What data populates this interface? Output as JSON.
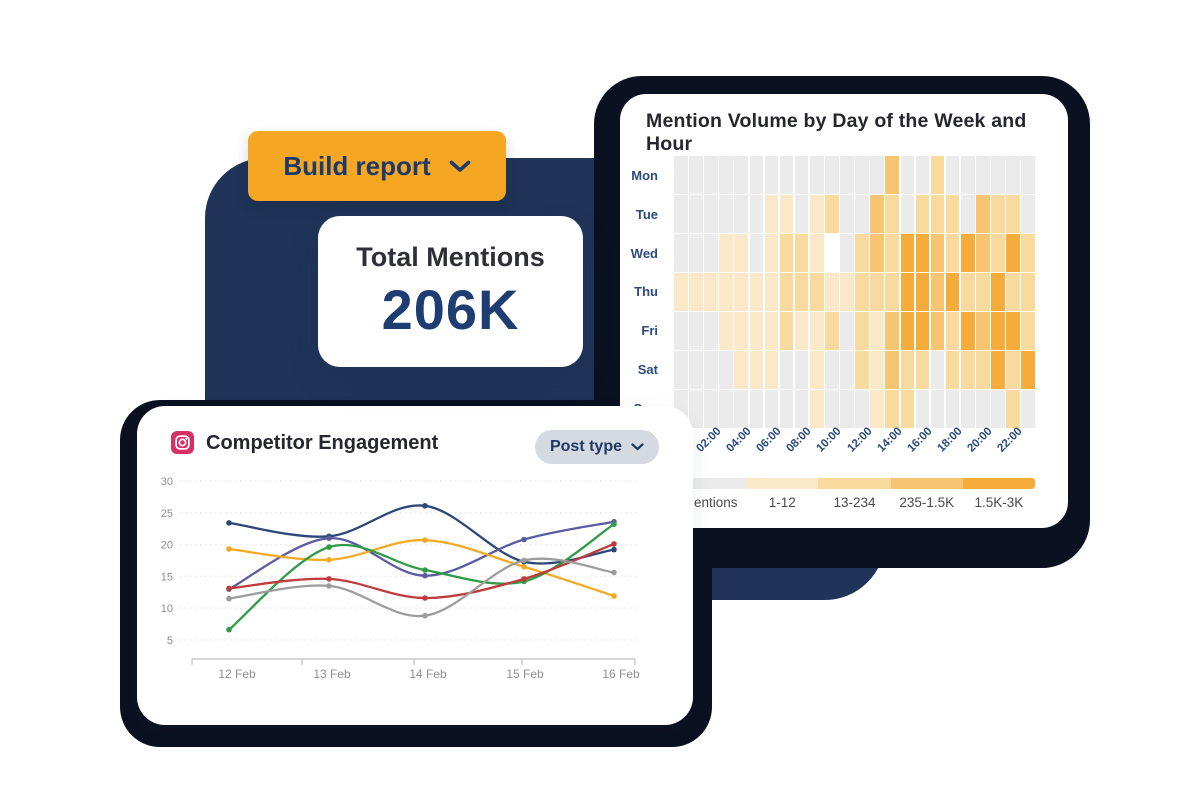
{
  "colors": {
    "panel_navy": "#1F3458",
    "card_frame_dark": "#0B1120",
    "accent_orange": "#F5A623",
    "deep_navy_text": "#1E3D72"
  },
  "build_report_button": {
    "label": "Build report",
    "icon": "chevron-down-icon"
  },
  "total_mentions_card": {
    "title": "Total Mentions",
    "value": "206K"
  },
  "competitor_card": {
    "icon": "instagram-icon",
    "post_type_button": {
      "label": "Post type",
      "icon": "chevron-down-icon"
    }
  },
  "chart_data": [
    {
      "type": "heatmap",
      "title": "Mention Volume by Day of the Week and Hour",
      "rows": [
        "Mon",
        "Tue",
        "Wed",
        "Thu",
        "Fri",
        "Sat",
        "Sun"
      ],
      "hour_labels": [
        "02:00",
        "04:00",
        "06:00",
        "08:00",
        "10:00",
        "12:00",
        "14:00",
        "16:00",
        "18:00",
        "20:00",
        "22:00"
      ],
      "levels": {
        "0": "#EBEBEB",
        "1": "#FAE8C9",
        "2": "#F8D99E",
        "3": "#F7C572",
        "4": "#F6AC3A",
        "W": "#FFFFFF"
      },
      "legend": {
        "labels": [
          "Mentions",
          "1-12",
          "13-234",
          "235-1.5K",
          "1.5K-3K"
        ],
        "colors": [
          "#EBEBEB",
          "#FAE8C9",
          "#F8D99E",
          "#F7C572",
          "#F6AC3A"
        ]
      },
      "cells": [
        [
          0,
          0,
          0,
          0,
          0,
          0,
          0,
          0,
          0,
          0,
          0,
          0,
          0,
          0,
          3,
          0,
          0,
          2,
          0,
          0,
          0,
          0,
          0,
          0
        ],
        [
          0,
          0,
          0,
          0,
          0,
          0,
          1,
          1,
          0,
          1,
          2,
          0,
          0,
          3,
          2,
          0,
          2,
          2,
          2,
          0,
          3,
          2,
          2,
          0
        ],
        [
          0,
          0,
          0,
          1,
          1,
          0,
          1,
          2,
          2,
          1,
          "W",
          0,
          2,
          3,
          2,
          4,
          4,
          3,
          2,
          4,
          3,
          2,
          4,
          2
        ],
        [
          1,
          1,
          1,
          1,
          1,
          1,
          1,
          2,
          2,
          2,
          1,
          1,
          2,
          2,
          2,
          4,
          4,
          3,
          4,
          2,
          2,
          4,
          2,
          2
        ],
        [
          0,
          0,
          0,
          1,
          1,
          1,
          1,
          2,
          1,
          1,
          2,
          0,
          2,
          1,
          3,
          4,
          4,
          3,
          2,
          4,
          3,
          4,
          4,
          2
        ],
        [
          0,
          0,
          0,
          0,
          1,
          1,
          1,
          0,
          0,
          1,
          0,
          0,
          2,
          1,
          3,
          2,
          2,
          0,
          2,
          2,
          2,
          4,
          2,
          4
        ],
        [
          0,
          0,
          0,
          0,
          0,
          0,
          0,
          0,
          0,
          1,
          0,
          0,
          0,
          1,
          2,
          2,
          0,
          0,
          0,
          0,
          0,
          0,
          2,
          0
        ]
      ]
    },
    {
      "type": "line",
      "title": "Competitor Engagement",
      "x": [
        "12 Feb",
        "13 Feb",
        "14 Feb",
        "15 Feb",
        "16 Feb"
      ],
      "yticks": [
        5,
        10,
        15,
        20,
        25,
        30
      ],
      "ylim": [
        5,
        30
      ],
      "grid": "dashed-horizontal",
      "legend_position": "none",
      "series": [
        {
          "name": "navy",
          "color": "#2A4778",
          "values": [
            23.4,
            21.3,
            26.1,
            17.3,
            19.2
          ]
        },
        {
          "name": "purple",
          "color": "#5A5BA0",
          "values": [
            13.0,
            21.0,
            15.1,
            20.8,
            23.6
          ]
        },
        {
          "name": "orange",
          "color": "#F6A822",
          "values": [
            19.3,
            17.6,
            20.7,
            16.5,
            11.9
          ]
        },
        {
          "name": "green",
          "color": "#2E9C47",
          "values": [
            6.6,
            19.6,
            16.0,
            14.2,
            23.2
          ]
        },
        {
          "name": "red",
          "color": "#C03A3C",
          "values": [
            13.1,
            14.6,
            11.6,
            14.6,
            20.1
          ]
        },
        {
          "name": "gray",
          "color": "#9C9C9C",
          "values": [
            11.5,
            13.5,
            8.8,
            17.5,
            15.6
          ]
        }
      ]
    }
  ]
}
